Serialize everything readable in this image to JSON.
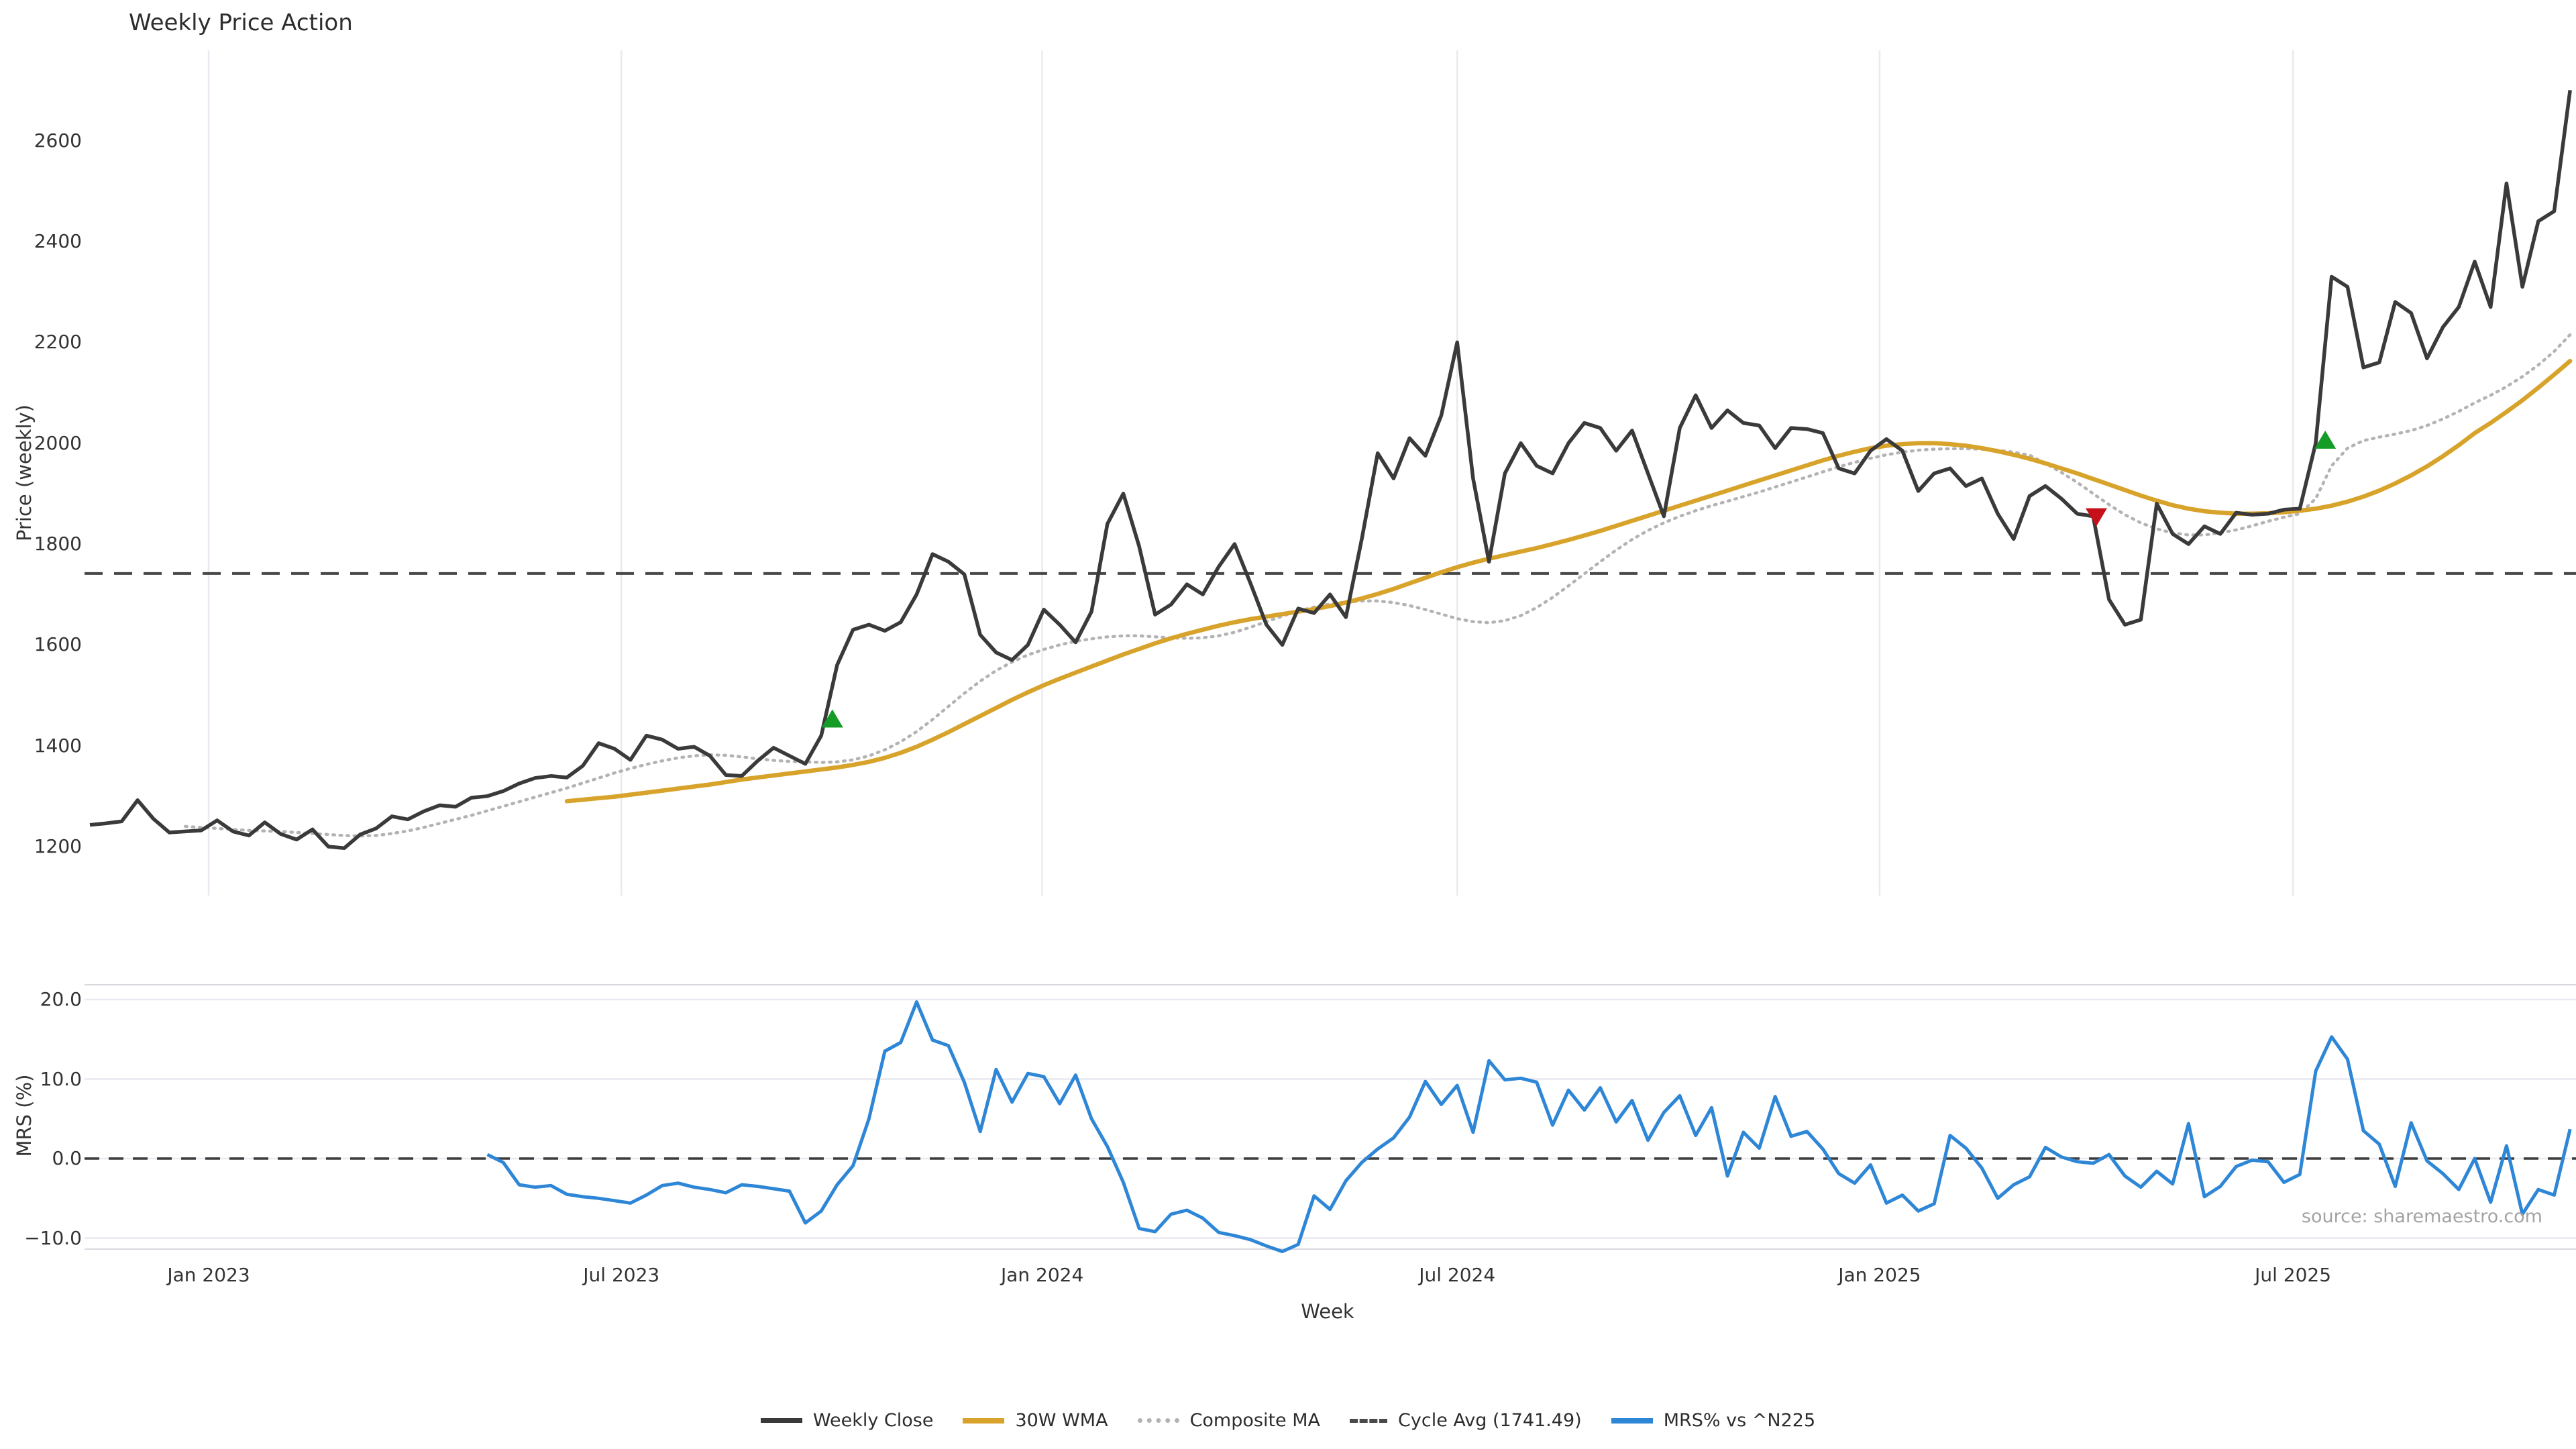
{
  "title": "Weekly Price Action",
  "source_note": "source: sharemaestro.com",
  "colors": {
    "weekly_close": "#3a3a3a",
    "wma_30w": "#d7a32b",
    "composite_ma": "#b3b3b3",
    "cycle_avg": "#474747",
    "mrs": "#2e86d6",
    "buy_marker": "#149c26",
    "sell_marker": "#c8101a",
    "gridline": "#e9e9f1"
  },
  "legend": {
    "items": [
      {
        "label": "Weekly Close",
        "swatch": "solid-dark"
      },
      {
        "label": "30W WMA",
        "swatch": "solid-gold"
      },
      {
        "label": "Composite MA",
        "swatch": "dotted-gray"
      },
      {
        "label": "Cycle Avg (1741.49)",
        "swatch": "dashed-dark"
      },
      {
        "label": "MRS% vs ^N225",
        "swatch": "solid-blue"
      }
    ]
  },
  "chart_data": [
    {
      "type": "line",
      "panel": "price",
      "title": "Weekly Price Action",
      "ylabel": "Price (weekly)",
      "ylim": [
        1090,
        2780
      ],
      "grid": "vertical-only",
      "yticks": [
        {
          "value": 2600,
          "label": "2600"
        },
        {
          "value": 2400,
          "label": "2400"
        },
        {
          "value": 2200,
          "label": "2200"
        },
        {
          "value": 2000,
          "label": "2000"
        },
        {
          "value": 1800,
          "label": "1800"
        },
        {
          "value": 1600,
          "label": "1600"
        },
        {
          "value": 1400,
          "label": "1400"
        },
        {
          "value": 1200,
          "label": "1200"
        }
      ],
      "x_axis": {
        "unit": "week",
        "total_weeks": 156.5,
        "ticks": [
          {
            "label": "Jan 2023",
            "week": 7.47
          },
          {
            "label": "Jul 2023",
            "week": 33.43
          },
          {
            "label": "Jan 2024",
            "week": 59.9
          },
          {
            "label": "Jul 2024",
            "week": 86.0
          },
          {
            "label": "Jan 2025",
            "week": 112.57
          },
          {
            "label": "Jul 2025",
            "week": 138.57
          }
        ]
      },
      "reference_line": {
        "name": "Cycle Avg",
        "value": 1741.49
      },
      "series": [
        {
          "name": "Weekly Close",
          "key": "close",
          "start_week": 0,
          "values": [
            1243,
            1246,
            1250,
            1292,
            1255,
            1228,
            1230,
            1232,
            1252,
            1230,
            1222,
            1248,
            1225,
            1214,
            1234,
            1200,
            1197,
            1224,
            1236,
            1260,
            1254,
            1270,
            1282,
            1279,
            1297,
            1300,
            1310,
            1325,
            1336,
            1340,
            1337,
            1360,
            1405,
            1394,
            1372,
            1420,
            1412,
            1394,
            1398,
            1380,
            1342,
            1340,
            1370,
            1396,
            1380,
            1364,
            1420,
            1560,
            1630,
            1640,
            1628,
            1645,
            1700,
            1780,
            1765,
            1740,
            1620,
            1585,
            1570,
            1600,
            1670,
            1640,
            1605,
            1666,
            1840,
            1900,
            1795,
            1660,
            1680,
            1720,
            1700,
            1755,
            1800,
            1722,
            1640,
            1600,
            1672,
            1663,
            1700,
            1655,
            1810,
            1980,
            1930,
            2010,
            1975,
            2055,
            2200,
            1930,
            1765,
            1940,
            2000,
            1955,
            1940,
            2000,
            2040,
            2030,
            1985,
            2025,
            1940,
            1855,
            2030,
            2095,
            2030,
            2065,
            2040,
            2035,
            1990,
            2030,
            2028,
            2020,
            1950,
            1940,
            1985,
            2008,
            1985,
            1905,
            1940,
            1950,
            1915,
            1930,
            1860,
            1810,
            1895,
            1915,
            1890,
            1860,
            1855,
            1690,
            1640,
            1650,
            1880,
            1820,
            1800,
            1835,
            1820,
            1862,
            1858,
            1860,
            1868,
            1870,
            2000,
            2330,
            2310,
            2150,
            2160,
            2280,
            2258,
            2168,
            2230,
            2270,
            2360,
            2270,
            2515,
            2310,
            2440,
            2460,
            2700
          ]
        },
        {
          "name": "30W WMA",
          "key": "wma",
          "start_week": 30,
          "values": [
            1290,
            1293,
            1296,
            1299,
            1303,
            1307,
            1311,
            1315,
            1319,
            1323,
            1328,
            1333,
            1337,
            1341,
            1345,
            1349,
            1353,
            1357,
            1362,
            1368,
            1376,
            1386,
            1398,
            1412,
            1427,
            1443,
            1459,
            1475,
            1491,
            1506,
            1520,
            1533,
            1545,
            1557,
            1569,
            1581,
            1592,
            1603,
            1613,
            1622,
            1630,
            1638,
            1645,
            1651,
            1656,
            1661,
            1666,
            1671,
            1677,
            1684,
            1692,
            1701,
            1711,
            1722,
            1733,
            1744,
            1754,
            1763,
            1771,
            1778,
            1785,
            1792,
            1800,
            1808,
            1817,
            1826,
            1836,
            1846,
            1856,
            1866,
            1876,
            1886,
            1896,
            1906,
            1916,
            1926,
            1936,
            1946,
            1956,
            1966,
            1975,
            1983,
            1990,
            1995,
            1998,
            2000,
            2000,
            1998,
            1995,
            1990,
            1984,
            1977,
            1969,
            1960,
            1950,
            1940,
            1929,
            1918,
            1907,
            1896,
            1886,
            1877,
            1870,
            1865,
            1862,
            1860,
            1860,
            1861,
            1863,
            1866,
            1870,
            1876,
            1884,
            1894,
            1906,
            1920,
            1936,
            1954,
            1974,
            1996,
            2020,
            2040,
            2062,
            2085,
            2110,
            2136,
            2163
          ]
        },
        {
          "name": "Composite MA",
          "key": "composite",
          "start_week": 6,
          "values": [
            1240,
            1238,
            1236,
            1234,
            1232,
            1231,
            1230,
            1228,
            1226,
            1224,
            1222,
            1221,
            1222,
            1226,
            1231,
            1238,
            1246,
            1254,
            1262,
            1271,
            1280,
            1289,
            1298,
            1307,
            1316,
            1326,
            1336,
            1346,
            1355,
            1363,
            1370,
            1376,
            1380,
            1382,
            1381,
            1378,
            1374,
            1371,
            1369,
            1368,
            1367,
            1368,
            1372,
            1380,
            1392,
            1408,
            1428,
            1452,
            1478,
            1504,
            1528,
            1549,
            1566,
            1580,
            1591,
            1600,
            1607,
            1612,
            1616,
            1618,
            1618,
            1616,
            1614,
            1613,
            1614,
            1618,
            1625,
            1635,
            1646,
            1657,
            1667,
            1675,
            1681,
            1685,
            1687,
            1687,
            1684,
            1678,
            1670,
            1661,
            1652,
            1646,
            1644,
            1648,
            1658,
            1674,
            1694,
            1717,
            1741,
            1765,
            1788,
            1809,
            1827,
            1842,
            1855,
            1866,
            1876,
            1885,
            1894,
            1903,
            1913,
            1923,
            1933,
            1943,
            1953,
            1962,
            1970,
            1977,
            1982,
            1986,
            1988,
            1989,
            1989,
            1988,
            1986,
            1982,
            1976,
            1960,
            1942,
            1922,
            1900,
            1878,
            1858,
            1842,
            1830,
            1822,
            1818,
            1818,
            1822,
            1828,
            1836,
            1845,
            1853,
            1860,
            1890,
            1955,
            1990,
            2005,
            2012,
            2018,
            2025,
            2035,
            2048,
            2063,
            2080,
            2095,
            2112,
            2132,
            2155,
            2182,
            2215
          ]
        }
      ],
      "markers": [
        {
          "shape": "triangle-up",
          "week": 46.7,
          "price": 1452,
          "meaning": "buy-signal"
        },
        {
          "shape": "triangle-down",
          "week": 126.2,
          "price": 1855,
          "meaning": "sell-signal"
        },
        {
          "shape": "triangle-up",
          "week": 140.6,
          "price": 2005,
          "meaning": "buy-signal"
        }
      ]
    },
    {
      "type": "line",
      "panel": "mrs",
      "ylabel": "MRS (%)",
      "xlabel": "Week",
      "ylim": [
        -11.9,
        21.9
      ],
      "grid": "horizontal-only",
      "zero_line": true,
      "yticks": [
        {
          "value": 20,
          "label": "20.0"
        },
        {
          "value": 10,
          "label": "10.0"
        },
        {
          "value": 0,
          "label": "0.0"
        },
        {
          "value": -10,
          "label": "−10.0"
        }
      ],
      "series": [
        {
          "name": "MRS% vs ^N225",
          "key": "mrs",
          "start_week": 25,
          "values": [
            0.5,
            -0.5,
            -3.3,
            -3.6,
            -3.4,
            -4.5,
            -4.8,
            -5.0,
            -5.3,
            -5.6,
            -4.6,
            -3.4,
            -3.1,
            -3.6,
            -3.9,
            -4.3,
            -3.3,
            -3.5,
            -3.8,
            -4.1,
            -8.1,
            -6.6,
            -3.3,
            -0.9,
            5.0,
            13.5,
            14.6,
            19.7,
            14.9,
            14.2,
            9.6,
            3.4,
            11.2,
            7.1,
            10.7,
            10.3,
            6.9,
            10.5,
            5.0,
            1.5,
            -3.0,
            -8.8,
            -9.2,
            -7.0,
            -6.5,
            -7.5,
            -9.3,
            -9.7,
            -10.2,
            -11.0,
            -11.7,
            -10.8,
            -4.7,
            -6.4,
            -2.8,
            -0.5,
            1.2,
            2.6,
            5.2,
            9.7,
            6.8,
            9.2,
            3.3,
            12.3,
            9.9,
            10.1,
            9.6,
            4.2,
            8.6,
            6.1,
            8.9,
            4.6,
            7.3,
            2.3,
            5.8,
            7.9,
            2.9,
            6.4,
            -2.2,
            3.3,
            1.3,
            7.8,
            2.8,
            3.4,
            1.2,
            -1.9,
            -3.1,
            -0.8,
            -5.6,
            -4.6,
            -6.6,
            -5.7,
            2.9,
            1.3,
            -1.2,
            -5.0,
            -3.3,
            -2.3,
            1.4,
            0.2,
            -0.4,
            -0.6,
            0.5,
            -2.2,
            -3.6,
            -1.6,
            -3.2,
            4.4,
            -4.8,
            -3.5,
            -1.0,
            -0.2,
            -0.4,
            -3.0,
            -2.0,
            11.0,
            15.3,
            12.5,
            3.5,
            1.8,
            -3.5,
            4.5,
            -0.3,
            -1.9,
            -3.9,
            0.0,
            -5.5,
            1.6,
            -7.0,
            -3.9,
            -4.6,
            3.7
          ]
        }
      ]
    }
  ]
}
